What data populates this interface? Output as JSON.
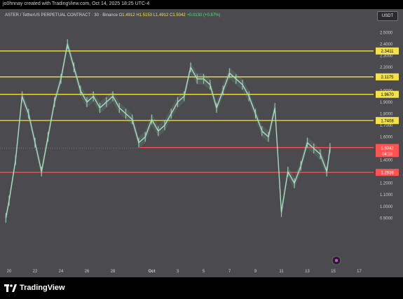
{
  "header": {
    "credit": "jo0hnnay created with TradingView.com, Oct 14, 2025 18:25 UTC-4"
  },
  "legend": {
    "symbol": "ASTER / TetherUS PERPETUAL CONTRACT · 30 · Binance",
    "o_label": "O",
    "o": "1.4912",
    "h_label": "H",
    "h": "1.5153",
    "l_label": "L",
    "l": "1.4912",
    "c_label": "C",
    "c": "1.5042",
    "change": "+0.0130 (+0.87%)"
  },
  "unit_badge": "USDT",
  "footer": {
    "brand": "TradingView"
  },
  "colors": {
    "background": "#4b4b4f",
    "candle": "#a8dcc0",
    "yellow_level": "#f4e24c",
    "red_level": "#ff5252",
    "current_price": "#ff5252"
  },
  "chart_data": {
    "type": "line",
    "title": "",
    "xlabel": "",
    "ylabel": "",
    "ylim": [
      0.8,
      2.58
    ],
    "x_ticks": [
      "20",
      "22",
      "24",
      "26",
      "28",
      "Oct",
      "3",
      "5",
      "7",
      "9",
      "11",
      "13",
      "15",
      "17"
    ],
    "y_ticks": [
      "2.5000",
      "2.4000",
      "2.3000",
      "2.2000",
      "2.1000",
      "2.0000",
      "1.9000",
      "1.8000",
      "1.7000",
      "1.6000",
      "1.5000",
      "1.4000",
      "1.3000",
      "1.2000",
      "1.1000",
      "1.0000",
      "0.9000"
    ],
    "series": [
      {
        "x": [
          "Sep 19 18:00",
          "Sep 20 00:00",
          "Sep 20 12:00",
          "Sep 21 00:00",
          "Sep 21 12:00",
          "Sep 22 00:00",
          "Sep 22 12:00",
          "Sep 23 00:00",
          "Sep 23 12:00",
          "Sep 24 00:00",
          "Sep 24 12:00",
          "Sep 25 00:00",
          "Sep 25 12:00",
          "Sep 26 00:00",
          "Sep 26 12:00",
          "Sep 27 00:00",
          "Sep 27 12:00",
          "Sep 28 00:00",
          "Sep 28 12:00",
          "Sep 29 00:00",
          "Sep 29 12:00",
          "Sep 30 00:00",
          "Sep 30 12:00",
          "Oct 1 00:00",
          "Oct 1 12:00",
          "Oct 2 00:00",
          "Oct 2 12:00",
          "Oct 3 00:00",
          "Oct 3 12:00",
          "Oct 4 00:00",
          "Oct 4 12:00",
          "Oct 5 00:00",
          "Oct 5 12:00",
          "Oct 6 00:00",
          "Oct 6 12:00",
          "Oct 7 00:00",
          "Oct 7 12:00",
          "Oct 8 00:00",
          "Oct 8 12:00",
          "Oct 9 00:00",
          "Oct 9 12:00",
          "Oct 10 00:00",
          "Oct 10 12:00",
          "Oct 11 00:00",
          "Oct 11 12:00",
          "Oct 12 00:00",
          "Oct 12 12:00",
          "Oct 13 00:00",
          "Oct 13 12:00",
          "Oct 14 00:00",
          "Oct 14 12:00",
          "Oct 14 18:00"
        ],
        "values": [
          0.9,
          1.05,
          1.4,
          1.95,
          1.8,
          1.55,
          1.3,
          1.6,
          1.9,
          2.1,
          2.4,
          2.2,
          2.0,
          1.9,
          1.95,
          1.85,
          1.9,
          1.95,
          1.85,
          1.8,
          1.75,
          1.55,
          1.6,
          1.75,
          1.65,
          1.7,
          1.8,
          1.9,
          1.95,
          2.2,
          2.1,
          2.1,
          2.05,
          1.85,
          2.0,
          2.15,
          2.1,
          2.05,
          1.95,
          1.8,
          1.65,
          1.6,
          1.85,
          0.95,
          1.3,
          1.2,
          1.35,
          1.55,
          1.5,
          1.45,
          1.3,
          1.5042
        ]
      }
    ],
    "levels": [
      {
        "price": 2.3411,
        "label": "2.3411",
        "color": "yellow"
      },
      {
        "price": 2.1175,
        "label": "2.1175",
        "color": "yellow"
      },
      {
        "price": 1.967,
        "label": "1.9670",
        "color": "yellow"
      },
      {
        "price": 1.7408,
        "label": "1.7408",
        "color": "yellow"
      },
      {
        "price": 1.5083,
        "label": "1.5083",
        "color": "red"
      },
      {
        "price": 1.2936,
        "label": "1.2936",
        "color": "red"
      }
    ],
    "current_price": {
      "price": 1.5042,
      "label": "1.5042",
      "countdown": "04:18"
    },
    "grid": false
  }
}
